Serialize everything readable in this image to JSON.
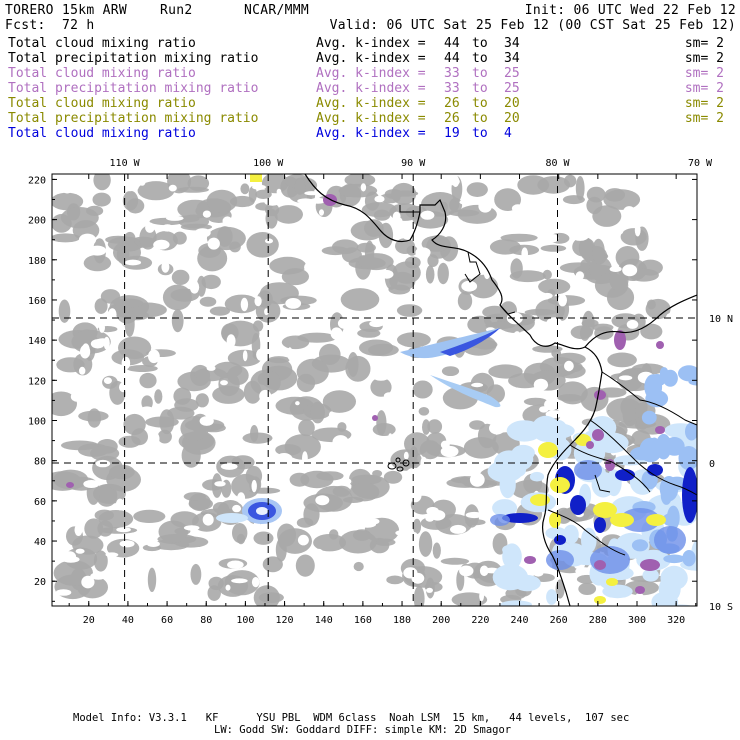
{
  "header": {
    "model": "TORERO",
    "resolution": "15km ARW",
    "run": "Run2",
    "org": "NCAR/MMM",
    "init": "Init: 06 UTC Wed 22 Feb 12",
    "fcst_label": "Fcst:",
    "fcst_value": "72 h",
    "valid": "Valid: 06 UTC Sat 25 Feb 12 (00 CST Sat 25 Feb 12)"
  },
  "legend": [
    {
      "field": "Total cloud mixing ratio",
      "kindex": "Avg. k-index =",
      "from": "44",
      "to_word": "to",
      "to": "34",
      "sm": "sm= 2",
      "color": "#000000"
    },
    {
      "field": "Total precipitation mixing ratio",
      "kindex": "Avg. k-index =",
      "from": "44",
      "to_word": "to",
      "to": "34",
      "sm": "sm= 2",
      "color": "#000000"
    },
    {
      "field": "Total cloud mixing ratio",
      "kindex": "Avg. k-index =",
      "from": "33",
      "to_word": "to",
      "to": "25",
      "sm": "sm= 2",
      "color": "#b070c0"
    },
    {
      "field": "Total precipitation mixing ratio",
      "kindex": "Avg. k-index =",
      "from": "33",
      "to_word": "to",
      "to": "25",
      "sm": "sm= 2",
      "color": "#b070c0"
    },
    {
      "field": "Total cloud mixing ratio",
      "kindex": "Avg. k-index =",
      "from": "26",
      "to_word": "to",
      "to": "20",
      "sm": "sm= 2",
      "color": "#8a8a00"
    },
    {
      "field": "Total precipitation mixing ratio",
      "kindex": "Avg. k-index =",
      "from": "26",
      "to_word": "to",
      "to": "20",
      "sm": "sm= 2",
      "color": "#8a8a00"
    },
    {
      "field": "Total cloud mixing ratio",
      "kindex": "Avg. k-index =",
      "from": "19",
      "to_word": "to",
      "to": "4",
      "sm": "",
      "color": "#0000dd"
    }
  ],
  "map": {
    "x_ticks": [
      "20",
      "40",
      "60",
      "80",
      "100",
      "120",
      "140",
      "160",
      "180",
      "200",
      "220",
      "240",
      "260",
      "280",
      "300",
      "320"
    ],
    "y_ticks": [
      "20",
      "40",
      "60",
      "80",
      "100",
      "120",
      "140",
      "160",
      "180",
      "200",
      "220"
    ],
    "lon_labels": [
      "110 W",
      "100 W",
      "90 W",
      "80 W",
      "70 W"
    ],
    "lat_labels": [
      "10 N",
      "0",
      "10 S"
    ],
    "colors": {
      "gray": "#a9a9a9",
      "lightblue": "#cfe6fb",
      "blue": "#3a56e0",
      "darkblue": "#1020c8",
      "purple": "#a060b0",
      "yellow": "#f4f040"
    }
  },
  "footer": {
    "line1": "Model Info: V3.3.1   KF      YSU PBL  WDM 6class  Noah LSM  15 km,   44 levels,  107 sec",
    "line2": "LW: Godd SW: Goddard DIFF: simple KM: 2D Smagor"
  }
}
